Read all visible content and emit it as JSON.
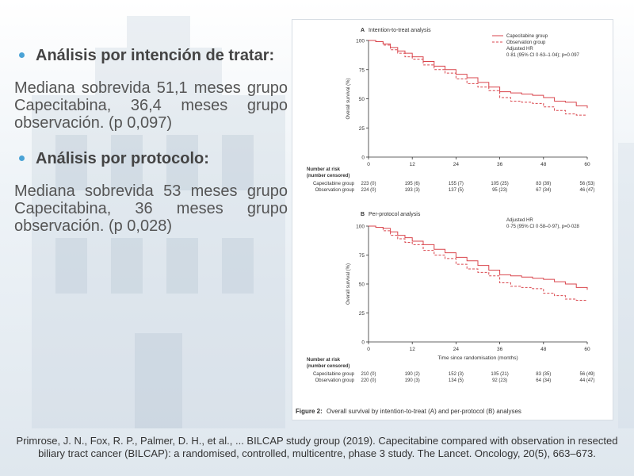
{
  "slide": {
    "bullets": [
      {
        "heading": "Análisis  por intención de tratar:",
        "body": "Mediana sobrevida 51,1 meses grupo Capecitabina, 36,4 meses grupo observación. (p 0,097)"
      },
      {
        "heading": "Análisis por protocolo:",
        "body": "Mediana sobrevida 53 meses grupo Capecitabina, 36 meses grupo observación. (p 0,028)"
      }
    ],
    "citation": {
      "text": "Primrose, J. N., Fox, R. P., Palmer, D. H., et al., ... BILCAP study group (2019). Capecitabine compared with observation in resected biliary tract cancer (BILCAP): a randomised, controlled, multicentre, phase 3 study. The Lancet. Oncology, 20(5), 663–673."
    },
    "colors": {
      "bullet": "#4aa3d6",
      "capecitabine": "#d9454c",
      "observation": "#d9454c",
      "axis": "#333333"
    }
  },
  "figure": {
    "caption_label": "Figure 2:",
    "caption_text": "Overall survival by intention-to-treat (A) and per-protocol (B) analyses"
  },
  "chart_data": [
    {
      "type": "line",
      "panel_letter": "A",
      "title": "Intention-to-treat analysis",
      "ylabel": "Overall survival (%)",
      "xlabel": "",
      "xlim": [
        0,
        60
      ],
      "ylim": [
        0,
        100
      ],
      "xticks": [
        0,
        12,
        24,
        36,
        48,
        60
      ],
      "yticks": [
        0,
        25,
        50,
        75,
        100
      ],
      "legend_position": "top-right",
      "legend": [
        "Capecitabine group",
        "Observation group"
      ],
      "hr_line1": "Adjusted HR",
      "hr_line2": "0·81 (95% CI 0·63–1·04); p=0·097",
      "series": [
        {
          "name": "Capecitabine group",
          "style": "solid",
          "x": [
            0,
            2,
            4,
            6,
            8,
            10,
            12,
            15,
            18,
            21,
            24,
            27,
            30,
            33,
            36,
            39,
            42,
            45,
            48,
            51,
            54,
            57,
            60
          ],
          "y": [
            100,
            99,
            97,
            94,
            91,
            89,
            86,
            82,
            78,
            75,
            71,
            68,
            64,
            60,
            56,
            55,
            54,
            53,
            51,
            48,
            47,
            44,
            42
          ]
        },
        {
          "name": "Observation group",
          "style": "dashed",
          "x": [
            0,
            2,
            4,
            6,
            8,
            10,
            12,
            15,
            18,
            21,
            24,
            27,
            30,
            33,
            36,
            39,
            42,
            45,
            48,
            51,
            54,
            57,
            60
          ],
          "y": [
            100,
            99,
            96,
            92,
            89,
            86,
            84,
            79,
            75,
            72,
            67,
            63,
            60,
            57,
            51,
            48,
            47,
            46,
            43,
            40,
            37,
            36,
            36
          ]
        }
      ],
      "risk_table": {
        "header1": "Number at risk",
        "header2": "(number censored)",
        "rows": [
          {
            "label": "Capecitabine group",
            "values": [
              "223 (0)",
              "195 (6)",
              "155 (7)",
              "105 (25)",
              "83 (39)",
              "56 (53)"
            ]
          },
          {
            "label": "Observation group",
            "values": [
              "224 (0)",
              "193 (3)",
              "137 (5)",
              "95 (23)",
              "67 (34)",
              "46 (47)"
            ]
          }
        ]
      }
    },
    {
      "type": "line",
      "panel_letter": "B",
      "title": "Per-protocol analysis",
      "ylabel": "Overall survival (%)",
      "xlabel": "Time since randomisation (months)",
      "xlim": [
        0,
        60
      ],
      "ylim": [
        0,
        100
      ],
      "xticks": [
        0,
        12,
        24,
        36,
        48,
        60
      ],
      "yticks": [
        0,
        25,
        50,
        75,
        100
      ],
      "hr_line1": "Adjusted HR",
      "hr_line2": "0·75 (95% CI 0·58–0·97), p=0·028",
      "series": [
        {
          "name": "Capecitabine group",
          "style": "solid",
          "x": [
            0,
            2,
            4,
            6,
            8,
            10,
            12,
            15,
            18,
            21,
            24,
            27,
            30,
            33,
            36,
            39,
            42,
            45,
            48,
            51,
            54,
            57,
            60
          ],
          "y": [
            100,
            99,
            98,
            95,
            92,
            90,
            87,
            84,
            80,
            77,
            73,
            70,
            66,
            62,
            58,
            57,
            56,
            55,
            54,
            52,
            50,
            47,
            45
          ]
        },
        {
          "name": "Observation group",
          "style": "dashed",
          "x": [
            0,
            2,
            4,
            6,
            8,
            10,
            12,
            15,
            18,
            21,
            24,
            27,
            30,
            33,
            36,
            39,
            42,
            45,
            48,
            51,
            54,
            57,
            60
          ],
          "y": [
            100,
            99,
            96,
            92,
            89,
            86,
            84,
            79,
            75,
            72,
            67,
            63,
            60,
            57,
            51,
            48,
            47,
            46,
            42,
            40,
            37,
            36,
            36
          ]
        }
      ],
      "risk_table": {
        "header1": "Number at risk",
        "header2": "(number censored)",
        "rows": [
          {
            "label": "Capecitabine group",
            "values": [
              "210 (0)",
              "190 (2)",
              "152 (3)",
              "105 (21)",
              "83 (35)",
              "56 (49)"
            ]
          },
          {
            "label": "Observation group",
            "values": [
              "220 (0)",
              "190 (3)",
              "134 (5)",
              "92 (23)",
              "64 (34)",
              "44 (47)"
            ]
          }
        ]
      }
    }
  ]
}
